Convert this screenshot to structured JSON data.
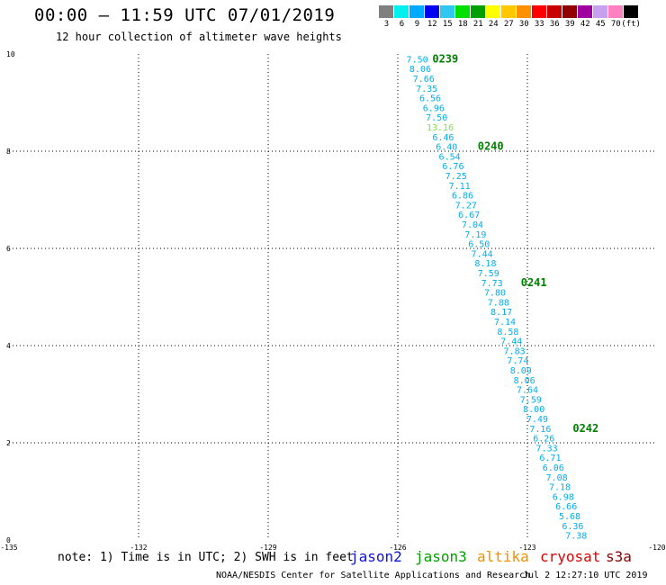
{
  "header": {
    "title": "00:00 – 11:59 UTC 07/01/2019",
    "subtitle": "12 hour collection of altimeter wave heights"
  },
  "color_scale": {
    "swatches": [
      "#808080",
      "#00f0f0",
      "#00aaff",
      "#0000f0",
      "#30c8f0",
      "#00e000",
      "#00a000",
      "#ffff00",
      "#ffc800",
      "#ff9000",
      "#ff0000",
      "#c80000",
      "#900000",
      "#a000a0",
      "#c8a0f0",
      "#ff80c0",
      "#000000"
    ],
    "labels": [
      "3",
      "6",
      "9",
      "12",
      "15",
      "18",
      "21",
      "24",
      "27",
      "30",
      "33",
      "36",
      "39",
      "42",
      "45",
      "70",
      "(ft)"
    ]
  },
  "chart_data": {
    "type": "scatter",
    "title": "00:00 – 11:59 UTC 07/01/2019",
    "subtitle": "12 hour collection of altimeter wave heights",
    "xlim": [
      -135,
      -120
    ],
    "ylim": [
      0,
      10
    ],
    "x_ticks": [
      "-135",
      "-132",
      "-129",
      "-126",
      "-123",
      "-120"
    ],
    "x_tick_values": [
      -135,
      -132,
      -129,
      -126,
      -123,
      -120
    ],
    "y_ticks": [
      "0",
      "2",
      "4",
      "6",
      "8",
      "10"
    ],
    "y_tick_values": [
      0,
      2,
      4,
      6,
      8,
      10
    ],
    "grid": true,
    "track_color": "#00aeef",
    "highlight_color": "#80e050",
    "points": [
      {
        "x": -125.55,
        "y": 9.9,
        "label": "7.50"
      },
      {
        "x": -125.48,
        "y": 9.7,
        "label": "8.06"
      },
      {
        "x": -125.4,
        "y": 9.5,
        "label": "7.66"
      },
      {
        "x": -125.33,
        "y": 9.3,
        "label": "7.35"
      },
      {
        "x": -125.25,
        "y": 9.1,
        "label": "6.56"
      },
      {
        "x": -125.17,
        "y": 8.9,
        "label": "6.96"
      },
      {
        "x": -125.1,
        "y": 8.7,
        "label": "7.50"
      },
      {
        "x": -125.02,
        "y": 8.5,
        "label": "13.16",
        "highlight": true
      },
      {
        "x": -124.95,
        "y": 8.3,
        "label": "6.46"
      },
      {
        "x": -124.87,
        "y": 8.1,
        "label": "6.40"
      },
      {
        "x": -124.8,
        "y": 7.9,
        "label": "6.54"
      },
      {
        "x": -124.72,
        "y": 7.7,
        "label": "6.76"
      },
      {
        "x": -124.65,
        "y": 7.5,
        "label": "7.25"
      },
      {
        "x": -124.57,
        "y": 7.3,
        "label": "7.11"
      },
      {
        "x": -124.5,
        "y": 7.1,
        "label": "6.86"
      },
      {
        "x": -124.42,
        "y": 6.9,
        "label": "7.27"
      },
      {
        "x": -124.35,
        "y": 6.7,
        "label": "6.67"
      },
      {
        "x": -124.27,
        "y": 6.5,
        "label": "7.04"
      },
      {
        "x": -124.2,
        "y": 6.3,
        "label": "7.19"
      },
      {
        "x": -124.12,
        "y": 6.1,
        "label": "6.50"
      },
      {
        "x": -124.05,
        "y": 5.9,
        "label": "7.44"
      },
      {
        "x": -123.97,
        "y": 5.7,
        "label": "8.18"
      },
      {
        "x": -123.9,
        "y": 5.5,
        "label": "7.59"
      },
      {
        "x": -123.82,
        "y": 5.3,
        "label": "7.73"
      },
      {
        "x": -123.75,
        "y": 5.1,
        "label": "7.80"
      },
      {
        "x": -123.67,
        "y": 4.9,
        "label": "7.88"
      },
      {
        "x": -123.6,
        "y": 4.7,
        "label": "8.17"
      },
      {
        "x": -123.52,
        "y": 4.5,
        "label": "7.14"
      },
      {
        "x": -123.45,
        "y": 4.3,
        "label": "8.58"
      },
      {
        "x": -123.37,
        "y": 4.1,
        "label": "7.44"
      },
      {
        "x": -123.3,
        "y": 3.9,
        "label": "7.83"
      },
      {
        "x": -123.22,
        "y": 3.7,
        "label": "7.74"
      },
      {
        "x": -123.15,
        "y": 3.5,
        "label": "8.09"
      },
      {
        "x": -123.07,
        "y": 3.3,
        "label": "8.06"
      },
      {
        "x": -123.0,
        "y": 3.1,
        "label": "7.64"
      },
      {
        "x": -122.92,
        "y": 2.9,
        "label": "7.59"
      },
      {
        "x": -122.85,
        "y": 2.7,
        "label": "8.00"
      },
      {
        "x": -122.77,
        "y": 2.5,
        "label": "7.49"
      },
      {
        "x": -122.7,
        "y": 2.3,
        "label": "7.16"
      },
      {
        "x": -122.62,
        "y": 2.1,
        "label": "6.26"
      },
      {
        "x": -122.55,
        "y": 1.9,
        "label": "7.33"
      },
      {
        "x": -122.47,
        "y": 1.7,
        "label": "6.71"
      },
      {
        "x": -122.4,
        "y": 1.5,
        "label": "6.06"
      },
      {
        "x": -122.32,
        "y": 1.3,
        "label": "7.08"
      },
      {
        "x": -122.25,
        "y": 1.1,
        "label": "7.18"
      },
      {
        "x": -122.17,
        "y": 0.9,
        "label": "6.98"
      },
      {
        "x": -122.1,
        "y": 0.7,
        "label": "6.66"
      },
      {
        "x": -122.02,
        "y": 0.5,
        "label": "5.68"
      },
      {
        "x": -121.95,
        "y": 0.3,
        "label": "6.36"
      },
      {
        "x": -121.87,
        "y": 0.1,
        "label": "7.38"
      }
    ],
    "time_labels": [
      {
        "x": -124.9,
        "y": 9.9,
        "label": "0239"
      },
      {
        "x": -123.85,
        "y": 8.1,
        "label": "0240"
      },
      {
        "x": -122.85,
        "y": 5.3,
        "label": "0241"
      },
      {
        "x": -121.65,
        "y": 2.3,
        "label": "0242"
      }
    ],
    "time_label_color": "#008000"
  },
  "footer": {
    "note": "note: 1) Time is in UTC; 2) SWH is in feet",
    "satellites": [
      {
        "name": "jason2",
        "color": "#1010d8"
      },
      {
        "name": "jason3",
        "color": "#00a000"
      },
      {
        "name": "altika",
        "color": "#f09000"
      },
      {
        "name": "cryosat",
        "color": "#e00000"
      },
      {
        "name": "s3a",
        "color": "#8b0000"
      }
    ],
    "credit": "NOAA/NESDIS Center for Satellite Applications and Research",
    "timestamp": "Jul  2 12:27:10 UTC 2019"
  }
}
